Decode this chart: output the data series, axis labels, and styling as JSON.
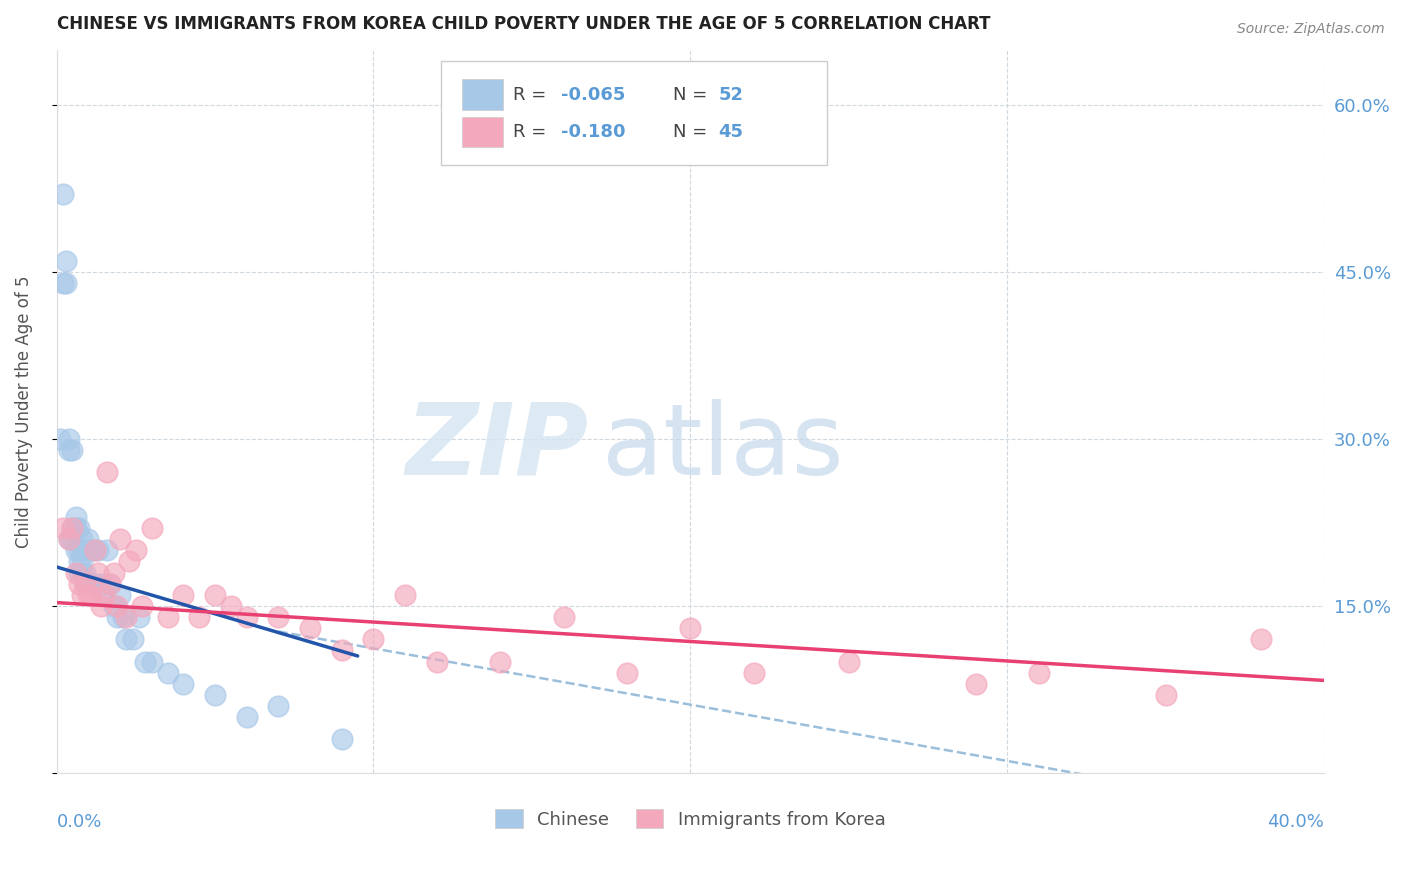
{
  "title": "CHINESE VS IMMIGRANTS FROM KOREA CHILD POVERTY UNDER THE AGE OF 5 CORRELATION CHART",
  "source": "Source: ZipAtlas.com",
  "ylabel": "Child Poverty Under the Age of 5",
  "legend_r1": "-0.065",
  "legend_n1": "52",
  "legend_r2": "-0.180",
  "legend_n2": "45",
  "legend_label1": "Chinese",
  "legend_label2": "Immigrants from Korea",
  "chinese_color": "#a8c8e8",
  "korea_color": "#f4a8bc",
  "chinese_line_color": "#2255aa",
  "korea_line_color": "#e84070",
  "dashed_line_color": "#90b8d8",
  "background_color": "#ffffff",
  "grid_color": "#d0d8e0",
  "xlim": [
    0.0,
    0.4
  ],
  "ylim": [
    0.0,
    0.65
  ],
  "chinese_x": [
    0.001,
    0.002,
    0.002,
    0.003,
    0.003,
    0.004,
    0.004,
    0.004,
    0.005,
    0.005,
    0.005,
    0.006,
    0.006,
    0.006,
    0.006,
    0.007,
    0.007,
    0.007,
    0.007,
    0.008,
    0.008,
    0.008,
    0.008,
    0.009,
    0.009,
    0.009,
    0.01,
    0.01,
    0.011,
    0.011,
    0.012,
    0.012,
    0.013,
    0.014,
    0.015,
    0.016,
    0.017,
    0.018,
    0.019,
    0.02,
    0.021,
    0.022,
    0.024,
    0.026,
    0.028,
    0.03,
    0.035,
    0.04,
    0.05,
    0.06,
    0.07,
    0.09
  ],
  "chinese_y": [
    0.3,
    0.52,
    0.44,
    0.46,
    0.44,
    0.3,
    0.29,
    0.21,
    0.29,
    0.22,
    0.21,
    0.22,
    0.2,
    0.22,
    0.23,
    0.19,
    0.22,
    0.2,
    0.18,
    0.21,
    0.2,
    0.19,
    0.18,
    0.2,
    0.18,
    0.17,
    0.21,
    0.17,
    0.2,
    0.17,
    0.2,
    0.17,
    0.2,
    0.17,
    0.16,
    0.2,
    0.17,
    0.15,
    0.14,
    0.16,
    0.14,
    0.12,
    0.12,
    0.14,
    0.1,
    0.1,
    0.09,
    0.08,
    0.07,
    0.05,
    0.06,
    0.03
  ],
  "korea_x": [
    0.002,
    0.004,
    0.005,
    0.006,
    0.007,
    0.008,
    0.009,
    0.01,
    0.011,
    0.012,
    0.013,
    0.014,
    0.015,
    0.016,
    0.017,
    0.018,
    0.019,
    0.02,
    0.022,
    0.023,
    0.025,
    0.027,
    0.03,
    0.035,
    0.04,
    0.045,
    0.05,
    0.055,
    0.06,
    0.07,
    0.08,
    0.09,
    0.1,
    0.11,
    0.12,
    0.14,
    0.16,
    0.18,
    0.2,
    0.22,
    0.25,
    0.29,
    0.31,
    0.35,
    0.38
  ],
  "korea_y": [
    0.22,
    0.21,
    0.22,
    0.18,
    0.17,
    0.16,
    0.17,
    0.16,
    0.16,
    0.2,
    0.18,
    0.15,
    0.16,
    0.27,
    0.17,
    0.18,
    0.15,
    0.21,
    0.14,
    0.19,
    0.2,
    0.15,
    0.22,
    0.14,
    0.16,
    0.14,
    0.16,
    0.15,
    0.14,
    0.14,
    0.13,
    0.11,
    0.12,
    0.16,
    0.1,
    0.1,
    0.14,
    0.09,
    0.13,
    0.09,
    0.1,
    0.08,
    0.09,
    0.07,
    0.12
  ],
  "right_ytick_vals": [
    0.0,
    0.15,
    0.3,
    0.45,
    0.6
  ],
  "right_ytick_labels": [
    "",
    "15.0%",
    "30.0%",
    "45.0%",
    "60.0%"
  ],
  "tick_color": "#5b9bd5",
  "title_fontsize": 12,
  "label_fontsize": 12,
  "tick_fontsize": 13
}
